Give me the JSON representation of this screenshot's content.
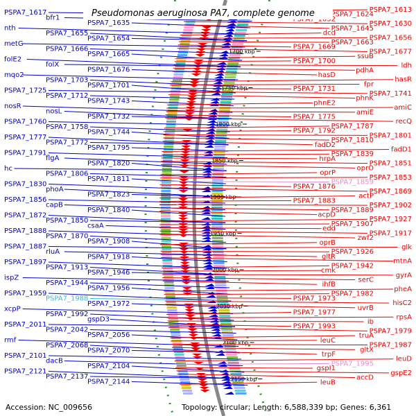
{
  "title": "Pseudomonas aeruginosa PA7, complete genome",
  "footer": {
    "accession_label": "Accession:",
    "accession": "NC_009656",
    "topology_label": "Topology:",
    "topology": "circular",
    "length_label": "Length:",
    "length": "6,588,339 bp",
    "genes_label": "Genes:",
    "genes": "6,361"
  },
  "colors": {
    "left": "#0000cc",
    "right": "#ee0000",
    "cyan": "#33bbdd",
    "pink": "#ee88cc",
    "backbone": "#888888"
  },
  "ticks": [
    "1700 kbp",
    "1750 kbp",
    "1800 kbp",
    "1850 kbp",
    "1900 kbp",
    "1950 kbp",
    "2000 kbp",
    "2050 kbp",
    "2100 kbp",
    "2150 kbp"
  ],
  "left_labels": [
    "PSPA7_1617",
    "bfr1",
    "PSPA7_1635",
    "nth",
    "PSPA7_1655",
    "PSPA7_1654",
    "metG",
    "PSPA7_1666",
    "PSPA7_1665",
    "folE2",
    "folX",
    "PSPA7_1676",
    "mqo2",
    "PSPA7_1703",
    "PSPA7_1701",
    "PSPA7_1725",
    "PSPA7_1712",
    "PSPA7_1743",
    "nosR",
    "nosL",
    "PSPA7_1732",
    "PSPA7_1760",
    "PSPA7_1758",
    "PSPA7_1744",
    "PSPA7_1777",
    "PSPA7_1772",
    "PSPA7_1795",
    "PSPA7_1791",
    "flgA",
    "PSPA7_1820",
    "hc",
    "PSPA7_1806",
    "PSPA7_1811",
    "PSPA7_1830",
    "phoA",
    "PSPA7_1823",
    "PSPA7_1856",
    "capB",
    "PSPA7_1840",
    "PSPA7_1872",
    "PSPA7_1850",
    "csaA",
    "PSPA7_1888",
    "PSPA7_1870",
    "PSPA7_1908",
    "PSPA7_1887",
    "rluA",
    "PSPA7_1918",
    "PSPA7_1897",
    "PSPA7_1913",
    "PSPA7_1946",
    "ispZ",
    "PSPA7_1944",
    "PSPA7_1956",
    "PSPA7_1959",
    "PSPA7_1988",
    "PSPA7_1972",
    "xcpP",
    "PSPA7_1992",
    "gspD3",
    "PSPA7_2011",
    "PSPA7_2042",
    "PSPA7_2056",
    "rmf",
    "PSPA7_2068",
    "PSPA7_2070",
    "PSPA7_2101",
    "dacB",
    "PSPA7_2104",
    "PSPA7_2121",
    "PSPA7_2137",
    "PSPA7_2144"
  ],
  "right_labels": [
    "PSPA7_1613",
    "PSPA7_1624",
    "PSPA7_1632",
    "PSPA7_1630",
    "PSPA7_1645",
    "dcd",
    "PSPA7_1656",
    "PSPA7_1663",
    "PSPA7_1669",
    "PSPA7_1677",
    "ssuB",
    "PSPA7_1700",
    "ldh",
    "pdhA",
    "hasD",
    "hasR",
    "fpr",
    "PSPA7_1731",
    "PSPA7_1741",
    "phnK",
    "phnE2",
    "amiC",
    "amiE",
    "PSPA7_1775",
    "recQ",
    "PSPA7_1787",
    "PSPA7_1792",
    "PSPA7_1801",
    "PSPA7_1810",
    "fadD2",
    "fadD1",
    "PSPA7_1839",
    "hrpA",
    "PSPA7_1851",
    "oprO",
    "oprP",
    "PSPA7_1853",
    "PSPA7_1859",
    "PSPA7_1876",
    "PSPA7_1869",
    "actP",
    "PSPA7_1883",
    "PSPA7_1902",
    "PSPA7_1889",
    "acpD",
    "PSPA7_1927",
    "PSPA7_1907",
    "edd",
    "PSPA7_1917",
    "zwf2",
    "oprB",
    "glk",
    "PSPA7_1926",
    "gltR",
    "mtnA",
    "PSPA7_1942",
    "cmk",
    "gyrA",
    "serC",
    "ihfB",
    "pheA",
    "PSPA7_1982",
    "PSPA7_1973",
    "hisC2",
    "uvrB",
    "PSPA7_1977",
    "rpsA",
    "ib",
    "PSPA7_1993",
    "PSPA7_1979",
    "truA",
    "leuC",
    "PSPA7_1987",
    "gltX",
    "trpF",
    "leuD",
    "PSPA7_1995",
    "gspI1",
    "gspE2",
    "accD",
    "leuB"
  ]
}
